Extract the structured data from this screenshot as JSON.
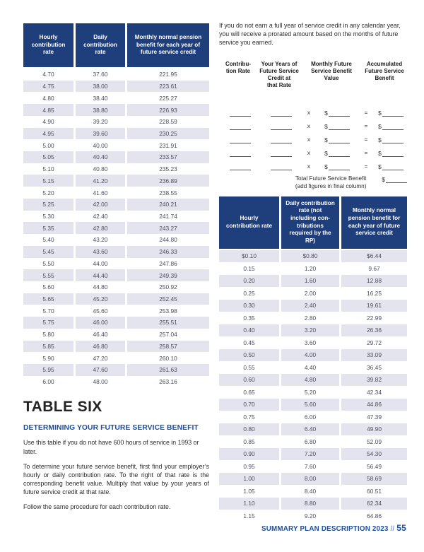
{
  "colors": {
    "table_header_navy": "#1f3e7c",
    "row_stripe": "#e4e4ee",
    "heading_blue": "#1c4fa1",
    "footer_slash_blue": "#7f9bca"
  },
  "left_table": {
    "headers": [
      "Hourly contribution rate",
      "Daily contribution rate",
      "Monthly normal pension benefit for each year of future service credit"
    ],
    "rows": [
      [
        "4.70",
        "37.60",
        "221.95"
      ],
      [
        "4.75",
        "38.00",
        "223.61"
      ],
      [
        "4.80",
        "38.40",
        "225.27"
      ],
      [
        "4.85",
        "38.80",
        "226.93"
      ],
      [
        "4.90",
        "39.20",
        "228.59"
      ],
      [
        "4.95",
        "39.60",
        "230.25"
      ],
      [
        "5.00",
        "40.00",
        "231.91"
      ],
      [
        "5.05",
        "40.40",
        "233.57"
      ],
      [
        "5.10",
        "40.80",
        "235.23"
      ],
      [
        "5.15",
        "41.20",
        "236.89"
      ],
      [
        "5.20",
        "41.60",
        "238.55"
      ],
      [
        "5.25",
        "42.00",
        "240.21"
      ],
      [
        "5.30",
        "42.40",
        "241.74"
      ],
      [
        "5.35",
        "42.80",
        "243.27"
      ],
      [
        "5.40",
        "43.20",
        "244.80"
      ],
      [
        "5.45",
        "43.60",
        "246.33"
      ],
      [
        "5.50",
        "44.00",
        "247.86"
      ],
      [
        "5.55",
        "44.40",
        "249.39"
      ],
      [
        "5.60",
        "44.80",
        "250.92"
      ],
      [
        "5.65",
        "45.20",
        "252.45"
      ],
      [
        "5.70",
        "45.60",
        "253.98"
      ],
      [
        "5.75",
        "46.00",
        "255.51"
      ],
      [
        "5.80",
        "46.40",
        "257.04"
      ],
      [
        "5.85",
        "46.80",
        "258.57"
      ],
      [
        "5.90",
        "47.20",
        "260.10"
      ],
      [
        "5.95",
        "47.60",
        "261.63"
      ],
      [
        "6.00",
        "48.00",
        "263.16"
      ]
    ]
  },
  "section": {
    "title": "TABLE SIX",
    "subtitle": "DETERMINING YOUR FUTURE SERVICE BENEFIT",
    "paragraphs": [
      "Use this table if you do not have 600 hours of service in 1993 or later.",
      "To determine your future service benefit, first find your employer’s hourly or daily contribution rate. To the right of that rate is the corresponding benefit value. Multiply that value by your years of future service credit at that rate.",
      "Follow the same procedure for each contribution rate."
    ]
  },
  "right_intro": "If you do not earn a full year of service credit in any calendar year, you will receive a prorated amount based on the months of future service you earned.",
  "worksheet": {
    "headers": [
      "Contribu-\ntion Rate",
      "Your Years of\nFuture Service\nCredit at\nthat Rate",
      "Monthly Future\nService Benefit\nValue",
      "Accumulated\nFuture Service\nBenefit"
    ],
    "row_count": 5,
    "multiply_symbol": "x",
    "dollar_sign": "$",
    "equals_symbol": "=",
    "total_label_line1": "Total Future Service Benefit",
    "total_label_line2": "(add figures in final column)"
  },
  "right_table": {
    "headers": [
      "Hourly contribution rate",
      "Daily contribution rate (not including con­tributions required by the RP)",
      "Monthly normal pension benefit for each year of future service credit"
    ],
    "rows": [
      [
        "$0.10",
        "$0.80",
        "$6.44"
      ],
      [
        "0.15",
        "1.20",
        "9.67"
      ],
      [
        "0.20",
        "1.60",
        "12.88"
      ],
      [
        "0.25",
        "2.00",
        "16.25"
      ],
      [
        "0.30",
        "2.40",
        "19.61"
      ],
      [
        "0.35",
        "2.80",
        "22.99"
      ],
      [
        "0.40",
        "3.20",
        "26.36"
      ],
      [
        "0.45",
        "3.60",
        "29.72"
      ],
      [
        "0.50",
        "4.00",
        "33.09"
      ],
      [
        "0.55",
        "4.40",
        "36.45"
      ],
      [
        "0.60",
        "4.80",
        "39.82"
      ],
      [
        "0.65",
        "5.20",
        "42.34"
      ],
      [
        "0.70",
        "5.60",
        "44.86"
      ],
      [
        "0.75",
        "6.00",
        "47.39"
      ],
      [
        "0.80",
        "6.40",
        "49.90"
      ],
      [
        "0.85",
        "6.80",
        "52.09"
      ],
      [
        "0.90",
        "7.20",
        "54.30"
      ],
      [
        "0.95",
        "7.60",
        "56.49"
      ],
      [
        "1.00",
        "8.00",
        "58.69"
      ],
      [
        "1.05",
        "8.40",
        "60.51"
      ],
      [
        "1.10",
        "8.80",
        "62.34"
      ],
      [
        "1.15",
        "9.20",
        "64.86"
      ]
    ]
  },
  "footer": {
    "text": "SUMMARY PLAN DESCRIPTION 2023",
    "separator": "//",
    "page": "55"
  }
}
